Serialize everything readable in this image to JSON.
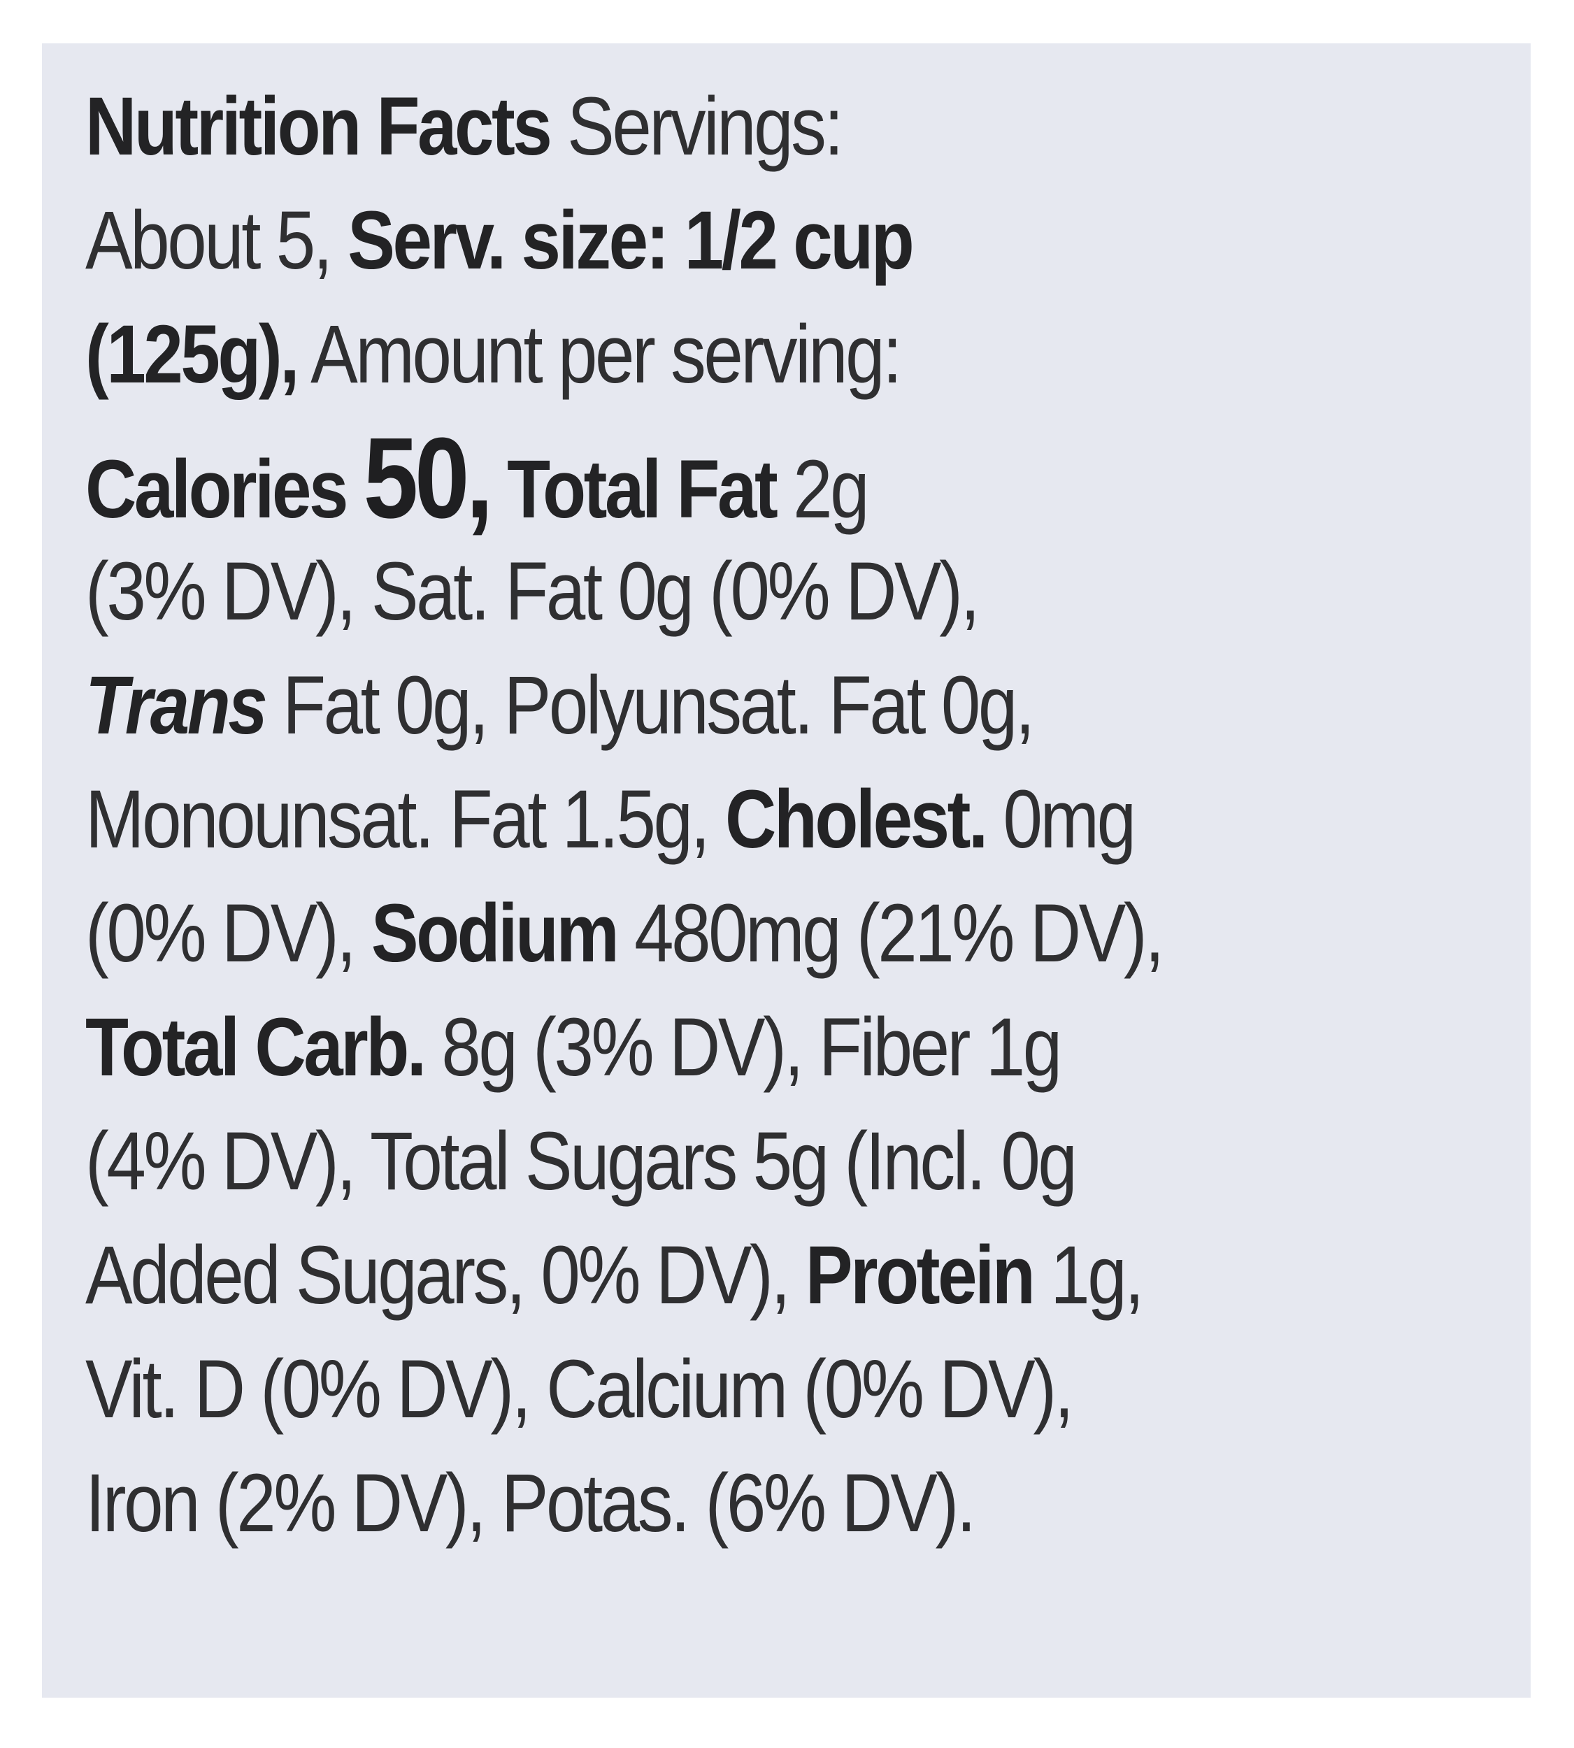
{
  "nutrition_label": {
    "heading": "Nutrition Facts",
    "servings_label": "Servings:",
    "servings_value": "About 5,",
    "serving_size_label": "Serv. size: 1/2 cup",
    "serving_size_grams": "(125g),",
    "amount_per_serving": "Amount per serving:",
    "calories_label": "Calories",
    "calories_value": "50,",
    "total_fat_label": "Total Fat",
    "total_fat_value": "2g",
    "total_fat_dv": "(3% DV), Sat. Fat 0g (0% DV),",
    "trans_label": "Trans",
    "trans_rest": "Fat 0g, Polyunsat. Fat 0g,",
    "monounsat_text": "Monounsat. Fat 1.5g,",
    "cholest_label": "Cholest.",
    "cholest_value": "0mg",
    "cholest_dv": "(0% DV),",
    "sodium_label": "Sodium",
    "sodium_value": "480mg (21% DV),",
    "carb_label": "Total Carb.",
    "carb_value": "8g (3% DV), Fiber 1g",
    "fiber_dv_sugars": "(4% DV), Total Sugars 5g (Incl. 0g",
    "added_sugars": "Added Sugars, 0% DV),",
    "protein_label": "Protein",
    "protein_value": "1g,",
    "vitamins_line1": "Vit. D (0% DV), Calcium (0% DV),",
    "vitamins_line2": "Iron (2% DV), Potas. (6% DV)."
  }
}
